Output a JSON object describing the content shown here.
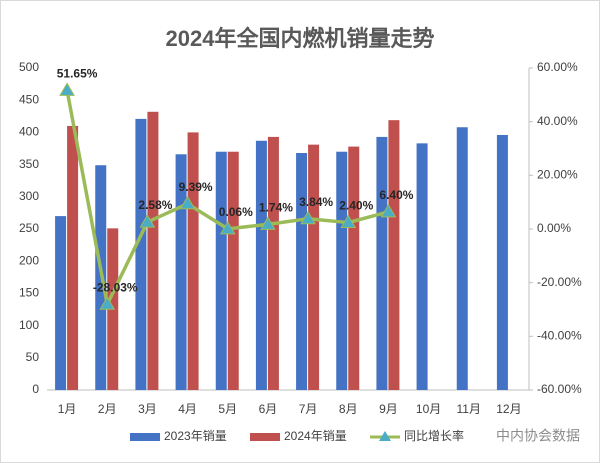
{
  "chart_data": {
    "type": "bar_line",
    "title": "2024年全国内燃机销量走势",
    "categories": [
      "1月",
      "2月",
      "3月",
      "4月",
      "5月",
      "6月",
      "7月",
      "8月",
      "9月",
      "10月",
      "11月",
      "12月"
    ],
    "series": [
      {
        "name": "2023年销量",
        "color": "#4472c4",
        "values": [
          270,
          349,
          421,
          366,
          370,
          387,
          368,
          370,
          393,
          383,
          408,
          396
        ]
      },
      {
        "name": "2024年销量",
        "color": "#c0504d",
        "values": [
          410,
          251,
          432,
          400,
          370,
          393,
          381,
          378,
          419,
          null,
          null,
          null
        ]
      },
      {
        "name": "同比增长率",
        "color": "#9bbb59",
        "marker_color": "#4bacc6",
        "axis": "y2",
        "values": [
          51.65,
          -28.03,
          2.58,
          9.39,
          0.06,
          1.74,
          3.84,
          2.4,
          6.4,
          null,
          null,
          null
        ],
        "value_labels": [
          "51.65%",
          "-28.03%",
          "2.58%",
          "9.39%",
          "0.06%",
          "1.74%",
          "3.84%",
          "2.40%",
          "6.40%",
          null,
          null,
          null
        ]
      }
    ],
    "ylim": [
      0,
      500
    ],
    "yticks": [
      0,
      50,
      100,
      150,
      200,
      250,
      300,
      350,
      400,
      450,
      500
    ],
    "y2lim": [
      -60,
      60
    ],
    "y2ticks": [
      {
        "value": -60,
        "label": "-60.00%"
      },
      {
        "value": -40,
        "label": "-40.00%"
      },
      {
        "value": -20,
        "label": "-20.00%"
      },
      {
        "value": 0,
        "label": "0.00%"
      },
      {
        "value": 20,
        "label": "20.00%"
      },
      {
        "value": 40,
        "label": "40.00%"
      },
      {
        "value": 60,
        "label": "60.00%"
      }
    ],
    "grid": false,
    "watermark": "中内协会数据"
  }
}
